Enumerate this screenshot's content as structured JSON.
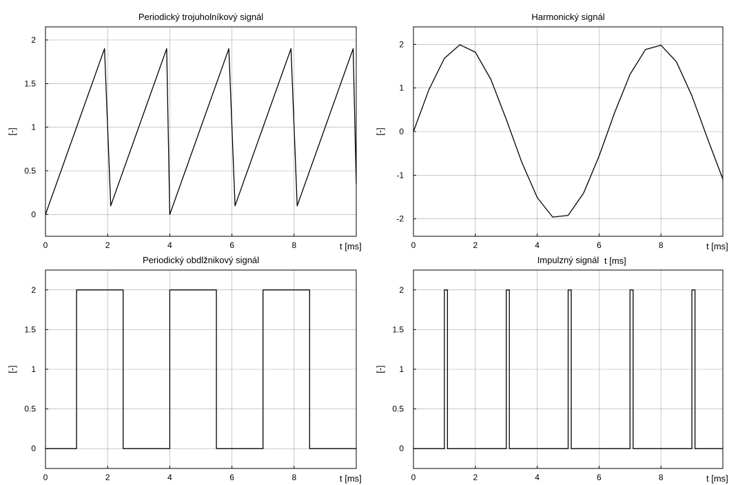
{
  "chart_data": [
    {
      "id": "triangle",
      "type": "line",
      "title": "Periodický trojuholníkový signál",
      "xlabel": "t [ms]",
      "ylabel": "[-]",
      "xlim": [
        0,
        10
      ],
      "ylim": [
        -0.25,
        2.15
      ],
      "xticks": [
        0,
        2,
        4,
        6,
        8
      ],
      "yticks": [
        0,
        0.5,
        1,
        1.5,
        2
      ],
      "ytick_labels": [
        "0",
        "0.5",
        "1",
        "1.5",
        "2"
      ],
      "grid": true,
      "series": [
        {
          "x": [
            0,
            1.9,
            2.1,
            3.9,
            4.0,
            5.9,
            6.1,
            7.9,
            8.1,
            9.9,
            10.0
          ],
          "y": [
            0,
            1.9,
            0.1,
            1.9,
            0.0,
            1.9,
            0.1,
            1.9,
            0.1,
            1.9,
            0.35
          ]
        }
      ]
    },
    {
      "id": "harmonic",
      "type": "line",
      "title": "Harmonický signál",
      "xlabel": "t [ms]",
      "ylabel": "[-]",
      "xlim": [
        0,
        10
      ],
      "ylim": [
        -2.4,
        2.4
      ],
      "xticks": [
        0,
        2,
        4,
        6,
        8
      ],
      "yticks": [
        -2,
        -1,
        0,
        1,
        2
      ],
      "ytick_labels": [
        "-2",
        "-1",
        "0",
        "1",
        "2"
      ],
      "grid": true,
      "series": [
        {
          "x": [
            0,
            0.5,
            1,
            1.5,
            2,
            2.5,
            3,
            3.5,
            4,
            4.5,
            5,
            5.5,
            6,
            6.5,
            7,
            7.5,
            8,
            8.5,
            9,
            9.5,
            10
          ],
          "y": [
            0,
            0.96,
            1.68,
            1.99,
            1.82,
            1.2,
            0.28,
            -0.7,
            -1.51,
            -1.96,
            -1.92,
            -1.41,
            -0.56,
            0.43,
            1.31,
            1.88,
            1.98,
            1.6,
            0.82,
            -0.15,
            -1.09
          ]
        }
      ]
    },
    {
      "id": "rectangle",
      "type": "line",
      "title": "Periodický obdlžnikový signál",
      "xlabel": "t [ms]",
      "ylabel": "[-]",
      "xlim": [
        0,
        10
      ],
      "ylim": [
        -0.25,
        2.25
      ],
      "xticks": [
        0,
        2,
        4,
        6,
        8
      ],
      "yticks": [
        0,
        0.5,
        1,
        1.5,
        2
      ],
      "ytick_labels": [
        "0",
        "0.5",
        "1",
        "1.5",
        "2"
      ],
      "grid": true,
      "series": [
        {
          "x": [
            0,
            1,
            1,
            2.5,
            2.5,
            4,
            4,
            5.5,
            5.5,
            7,
            7,
            8.5,
            8.5,
            10
          ],
          "y": [
            0,
            0,
            2,
            2,
            0,
            0,
            2,
            2,
            0,
            0,
            2,
            2,
            0,
            0
          ]
        }
      ]
    },
    {
      "id": "impulse",
      "type": "line",
      "title": "Impulzný signál",
      "xlabel": "t [ms]",
      "ylabel": "[-]",
      "xlim": [
        0,
        10
      ],
      "ylim": [
        -0.25,
        2.25
      ],
      "xticks": [
        0,
        2,
        4,
        6,
        8
      ],
      "yticks": [
        0,
        0.5,
        1,
        1.5,
        2
      ],
      "ytick_labels": [
        "0",
        "0.5",
        "1",
        "1.5",
        "2"
      ],
      "grid": true,
      "series": [
        {
          "x": [
            0,
            1.0,
            1.0,
            1.1,
            1.1,
            3.0,
            3.0,
            3.1,
            3.1,
            5.0,
            5.0,
            5.1,
            5.1,
            7.0,
            7.0,
            7.1,
            7.1,
            9.0,
            9.0,
            9.1,
            9.1,
            10
          ],
          "y": [
            0,
            0,
            2,
            2,
            0,
            0,
            2,
            2,
            0,
            0,
            2,
            2,
            0,
            0,
            2,
            2,
            0,
            0,
            2,
            2,
            0,
            0
          ]
        }
      ]
    }
  ],
  "extra_labels": {
    "harmonic_xlabel_repeat": "t [ms]"
  }
}
